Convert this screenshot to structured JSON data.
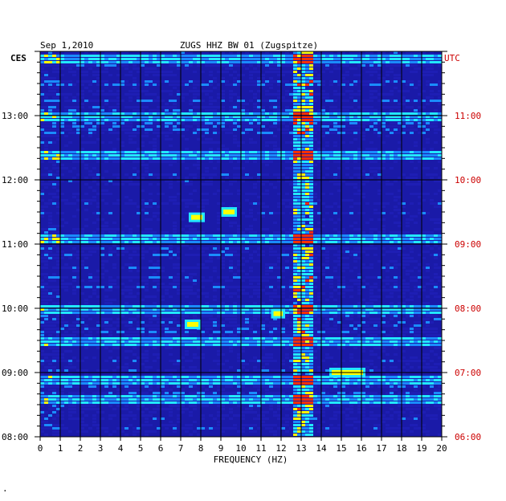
{
  "chart_data": {
    "type": "heatmap",
    "date": "Sep 1,2010",
    "title": "ZUGS HHZ BW 01 (Zugspitze)",
    "xlabel": "FREQUENCY (HZ)",
    "xlim": [
      0,
      20
    ],
    "x_ticks": [
      "0",
      "1",
      "2",
      "3",
      "4",
      "5",
      "6",
      "7",
      "8",
      "9",
      "10",
      "11",
      "12",
      "13",
      "14",
      "15",
      "16",
      "17",
      "18",
      "19",
      "20"
    ],
    "left_axis_label": "CES",
    "right_axis_label": "UTC",
    "left_time_ticks": [
      "13:00",
      "12:00",
      "11:00",
      "10:00",
      "09:00",
      "08:00"
    ],
    "right_time_ticks": [
      "11:00",
      "10:00",
      "09:00",
      "08:00",
      "07:00",
      "06:00"
    ],
    "time_range_local": [
      "08:00",
      "14:00"
    ],
    "colors": {
      "background": "#1a1aa8",
      "low": "#1e1eb4",
      "mid": "#1a8cff",
      "high": "#22e8ff",
      "hot": "#ffff00",
      "peak": "#ff3000",
      "grid": "#000000",
      "utc_text": "#cc0000"
    },
    "features": {
      "persistent_band_hz": [
        12.5,
        13.4
      ],
      "broadband_rows_local": [
        "13:55",
        "13:00",
        "12:25",
        "11:05",
        "10:00",
        "09:30",
        "08:55",
        "08:35"
      ],
      "hotspot_patches": [
        {
          "hz": [
            7.4,
            8.2
          ],
          "time": "11:25"
        },
        {
          "hz": [
            9.0,
            9.8
          ],
          "time": "11:30"
        },
        {
          "hz": [
            7.2,
            8.0
          ],
          "time": "09:45"
        },
        {
          "hz": [
            14.4,
            16.2
          ],
          "time": "09:00"
        },
        {
          "hz": [
            11.5,
            12.2
          ],
          "time": "09:55"
        }
      ]
    }
  },
  "footer_mark": "."
}
